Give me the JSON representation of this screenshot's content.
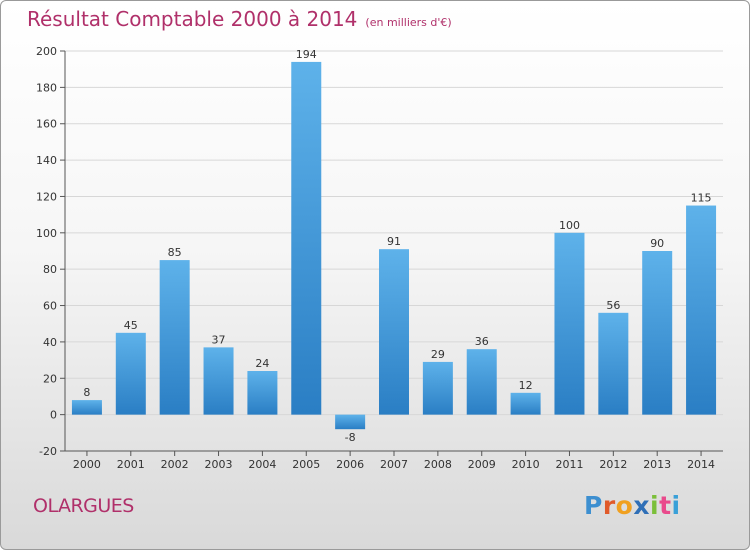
{
  "title": "Résultat Comptable 2000 à 2014",
  "unit_note": "(en milliers d'€)",
  "commune": "OLARGUES",
  "logo": {
    "text": "Proxiti",
    "letters": [
      {
        "char": "P",
        "color": "#3d8fd0"
      },
      {
        "char": "r",
        "color": "#e05a2a"
      },
      {
        "char": "o",
        "color": "#f0a020"
      },
      {
        "char": "x",
        "color": "#2f6fb7"
      },
      {
        "char": "i",
        "color": "#7bbf3a"
      },
      {
        "char": "t",
        "color": "#e94a8c"
      },
      {
        "char": "i",
        "color": "#3aa0d8"
      }
    ]
  },
  "colors": {
    "title": "#b0306a",
    "bar_light": "#5eb2ea",
    "bar_dark": "#2a7ec4",
    "grid": "#d7d7d7",
    "axis": "#555555"
  },
  "chart_data": {
    "type": "bar",
    "title": "Résultat Comptable 2000 à 2014",
    "ylabel": "en milliers d'€",
    "xlabel": "",
    "categories": [
      "2000",
      "2001",
      "2002",
      "2003",
      "2004",
      "2005",
      "2006",
      "2007",
      "2008",
      "2009",
      "2010",
      "2011",
      "2012",
      "2013",
      "2014"
    ],
    "values": [
      8,
      45,
      85,
      37,
      24,
      194,
      -8,
      91,
      29,
      36,
      12,
      100,
      56,
      90,
      115
    ],
    "ylim": [
      -20,
      200
    ],
    "yticks": [
      -20,
      0,
      20,
      40,
      60,
      80,
      100,
      120,
      140,
      160,
      180,
      200
    ],
    "grid": true
  }
}
